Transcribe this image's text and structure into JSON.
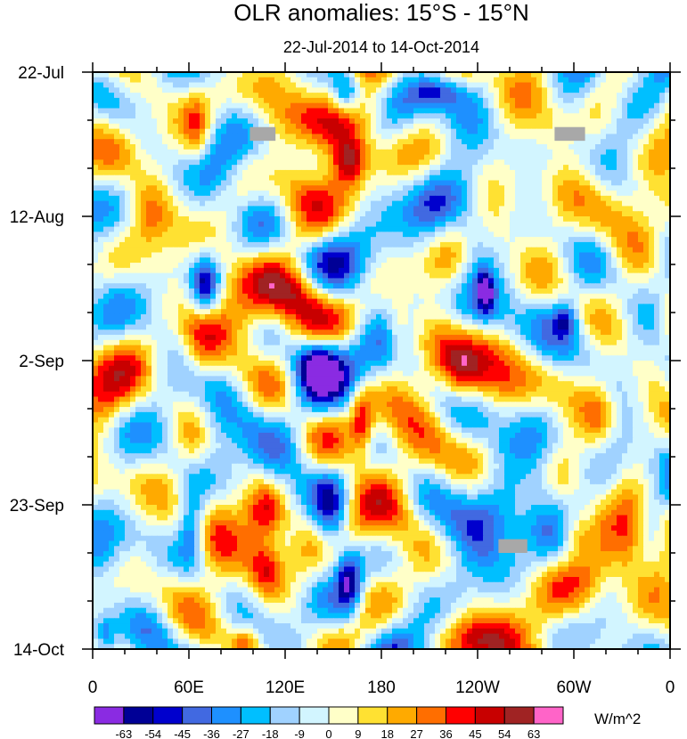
{
  "chart_data": {
    "type": "heatmap",
    "title": "OLR anomalies: 15°S - 15°N",
    "subtitle": "22-Jul-2014 to 14-Oct-2014",
    "xlabel": "",
    "ylabel": "",
    "x_tick_labels": [
      "0",
      "60E",
      "120E",
      "180",
      "120W",
      "60W",
      "0"
    ],
    "x_tick_longitudes": [
      0,
      60,
      120,
      180,
      240,
      300,
      360
    ],
    "xlim": [
      0,
      360
    ],
    "y_tick_labels": [
      "22-Jul",
      "12-Aug",
      "2-Sep",
      "23-Sep",
      "14-Oct"
    ],
    "y_tick_days": [
      0,
      21,
      42,
      63,
      84
    ],
    "ylim_days": [
      0,
      84
    ],
    "colorbar": {
      "units": "W/m^2",
      "levels": [
        -63,
        -54,
        -45,
        -36,
        -27,
        -18,
        -9,
        0,
        9,
        18,
        27,
        36,
        45,
        54,
        63
      ],
      "level_labels": [
        "-63",
        "-54",
        "-45",
        "-36",
        "-27",
        "-18",
        "-9",
        "0",
        "9",
        "18",
        "27",
        "36",
        "45",
        "54",
        "63"
      ],
      "colors": [
        "#8a2be2",
        "#000096",
        "#0000cd",
        "#4169e1",
        "#1e90ff",
        "#00bfff",
        "#a0d2ff",
        "#d2f5ff",
        "#ffffc8",
        "#ffe132",
        "#ffaa00",
        "#ff6e00",
        "#ff0000",
        "#c80000",
        "#a02323",
        "#ff64c8"
      ]
    },
    "features": [
      {
        "lon": 70,
        "day": 31,
        "value": -58,
        "rx": 9,
        "ry": 4.5
      },
      {
        "lon": 158,
        "day": 3,
        "value": -55,
        "rx": 10,
        "ry": 3
      },
      {
        "lon": 140,
        "day": 42,
        "value": -52,
        "rx": 14,
        "ry": 4
      },
      {
        "lon": 160,
        "day": 74,
        "value": -55,
        "rx": 8,
        "ry": 5
      },
      {
        "lon": 148,
        "day": 65,
        "value": -44,
        "rx": 10,
        "ry": 6
      },
      {
        "lon": 62,
        "day": 66,
        "value": -46,
        "rx": 9,
        "ry": 6
      },
      {
        "lon": 245,
        "day": 32,
        "value": -50,
        "rx": 5,
        "ry": 3
      },
      {
        "lon": 238,
        "day": 26,
        "value": -40,
        "rx": 14,
        "ry": 6
      },
      {
        "lon": 215,
        "day": 3,
        "value": -36,
        "rx": 16,
        "ry": 2.5
      },
      {
        "lon": 295,
        "day": 36,
        "value": -32,
        "rx": 7,
        "ry": 2.5
      },
      {
        "lon": 280,
        "day": 60,
        "value": -32,
        "rx": 14,
        "ry": 5
      },
      {
        "lon": 8,
        "day": 82,
        "value": -30,
        "rx": 7,
        "ry": 3
      },
      {
        "lon": 160,
        "day": 13,
        "value": 44,
        "rx": 10,
        "ry": 3.5
      },
      {
        "lon": 168,
        "day": 51,
        "value": 42,
        "rx": 7,
        "ry": 4.5
      },
      {
        "lon": 108,
        "day": 64,
        "value": 40,
        "rx": 12,
        "ry": 4
      },
      {
        "lon": 108,
        "day": 72,
        "value": 36,
        "rx": 10,
        "ry": 4
      },
      {
        "lon": 130,
        "day": 32,
        "value": 34,
        "rx": 18,
        "ry": 4
      },
      {
        "lon": 125,
        "day": 17,
        "value": 30,
        "rx": 16,
        "ry": 4
      },
      {
        "lon": 95,
        "day": 83,
        "value": 34,
        "rx": 10,
        "ry": 2.5
      },
      {
        "lon": 62,
        "day": 54,
        "value": 28,
        "rx": 12,
        "ry": 5
      },
      {
        "lon": 68,
        "day": 39,
        "value": 26,
        "rx": 12,
        "ry": 5
      },
      {
        "lon": 65,
        "day": 8,
        "value": 27,
        "rx": 9,
        "ry": 5
      },
      {
        "lon": 300,
        "day": 67,
        "value": 30,
        "rx": 10,
        "ry": 3
      },
      {
        "lon": 315,
        "day": 50,
        "value": 24,
        "rx": 10,
        "ry": 5
      },
      {
        "lon": 240,
        "day": 82,
        "value": 22,
        "rx": 20,
        "ry": 3
      },
      {
        "lon": 190,
        "day": 38,
        "value": 24,
        "rx": 8,
        "ry": 5
      },
      {
        "lon": 335,
        "day": 68,
        "value": 22,
        "rx": 10,
        "ry": 6
      },
      {
        "lon": 230,
        "day": 44,
        "value": 20,
        "rx": 10,
        "ry": 4
      },
      {
        "lon": 35,
        "day": 20,
        "value": 20,
        "rx": 12,
        "ry": 4
      },
      {
        "lon": 285,
        "day": 8,
        "value": 20,
        "rx": 14,
        "ry": 4
      }
    ],
    "missing_data": [
      {
        "lon_min": 98,
        "lon_max": 114,
        "day_min": 8,
        "day_max": 10
      },
      {
        "lon_min": 288,
        "lon_max": 307,
        "day_min": 8,
        "day_max": 10
      },
      {
        "lon_min": 253,
        "lon_max": 271,
        "day_min": 68,
        "day_max": 70
      }
    ]
  }
}
